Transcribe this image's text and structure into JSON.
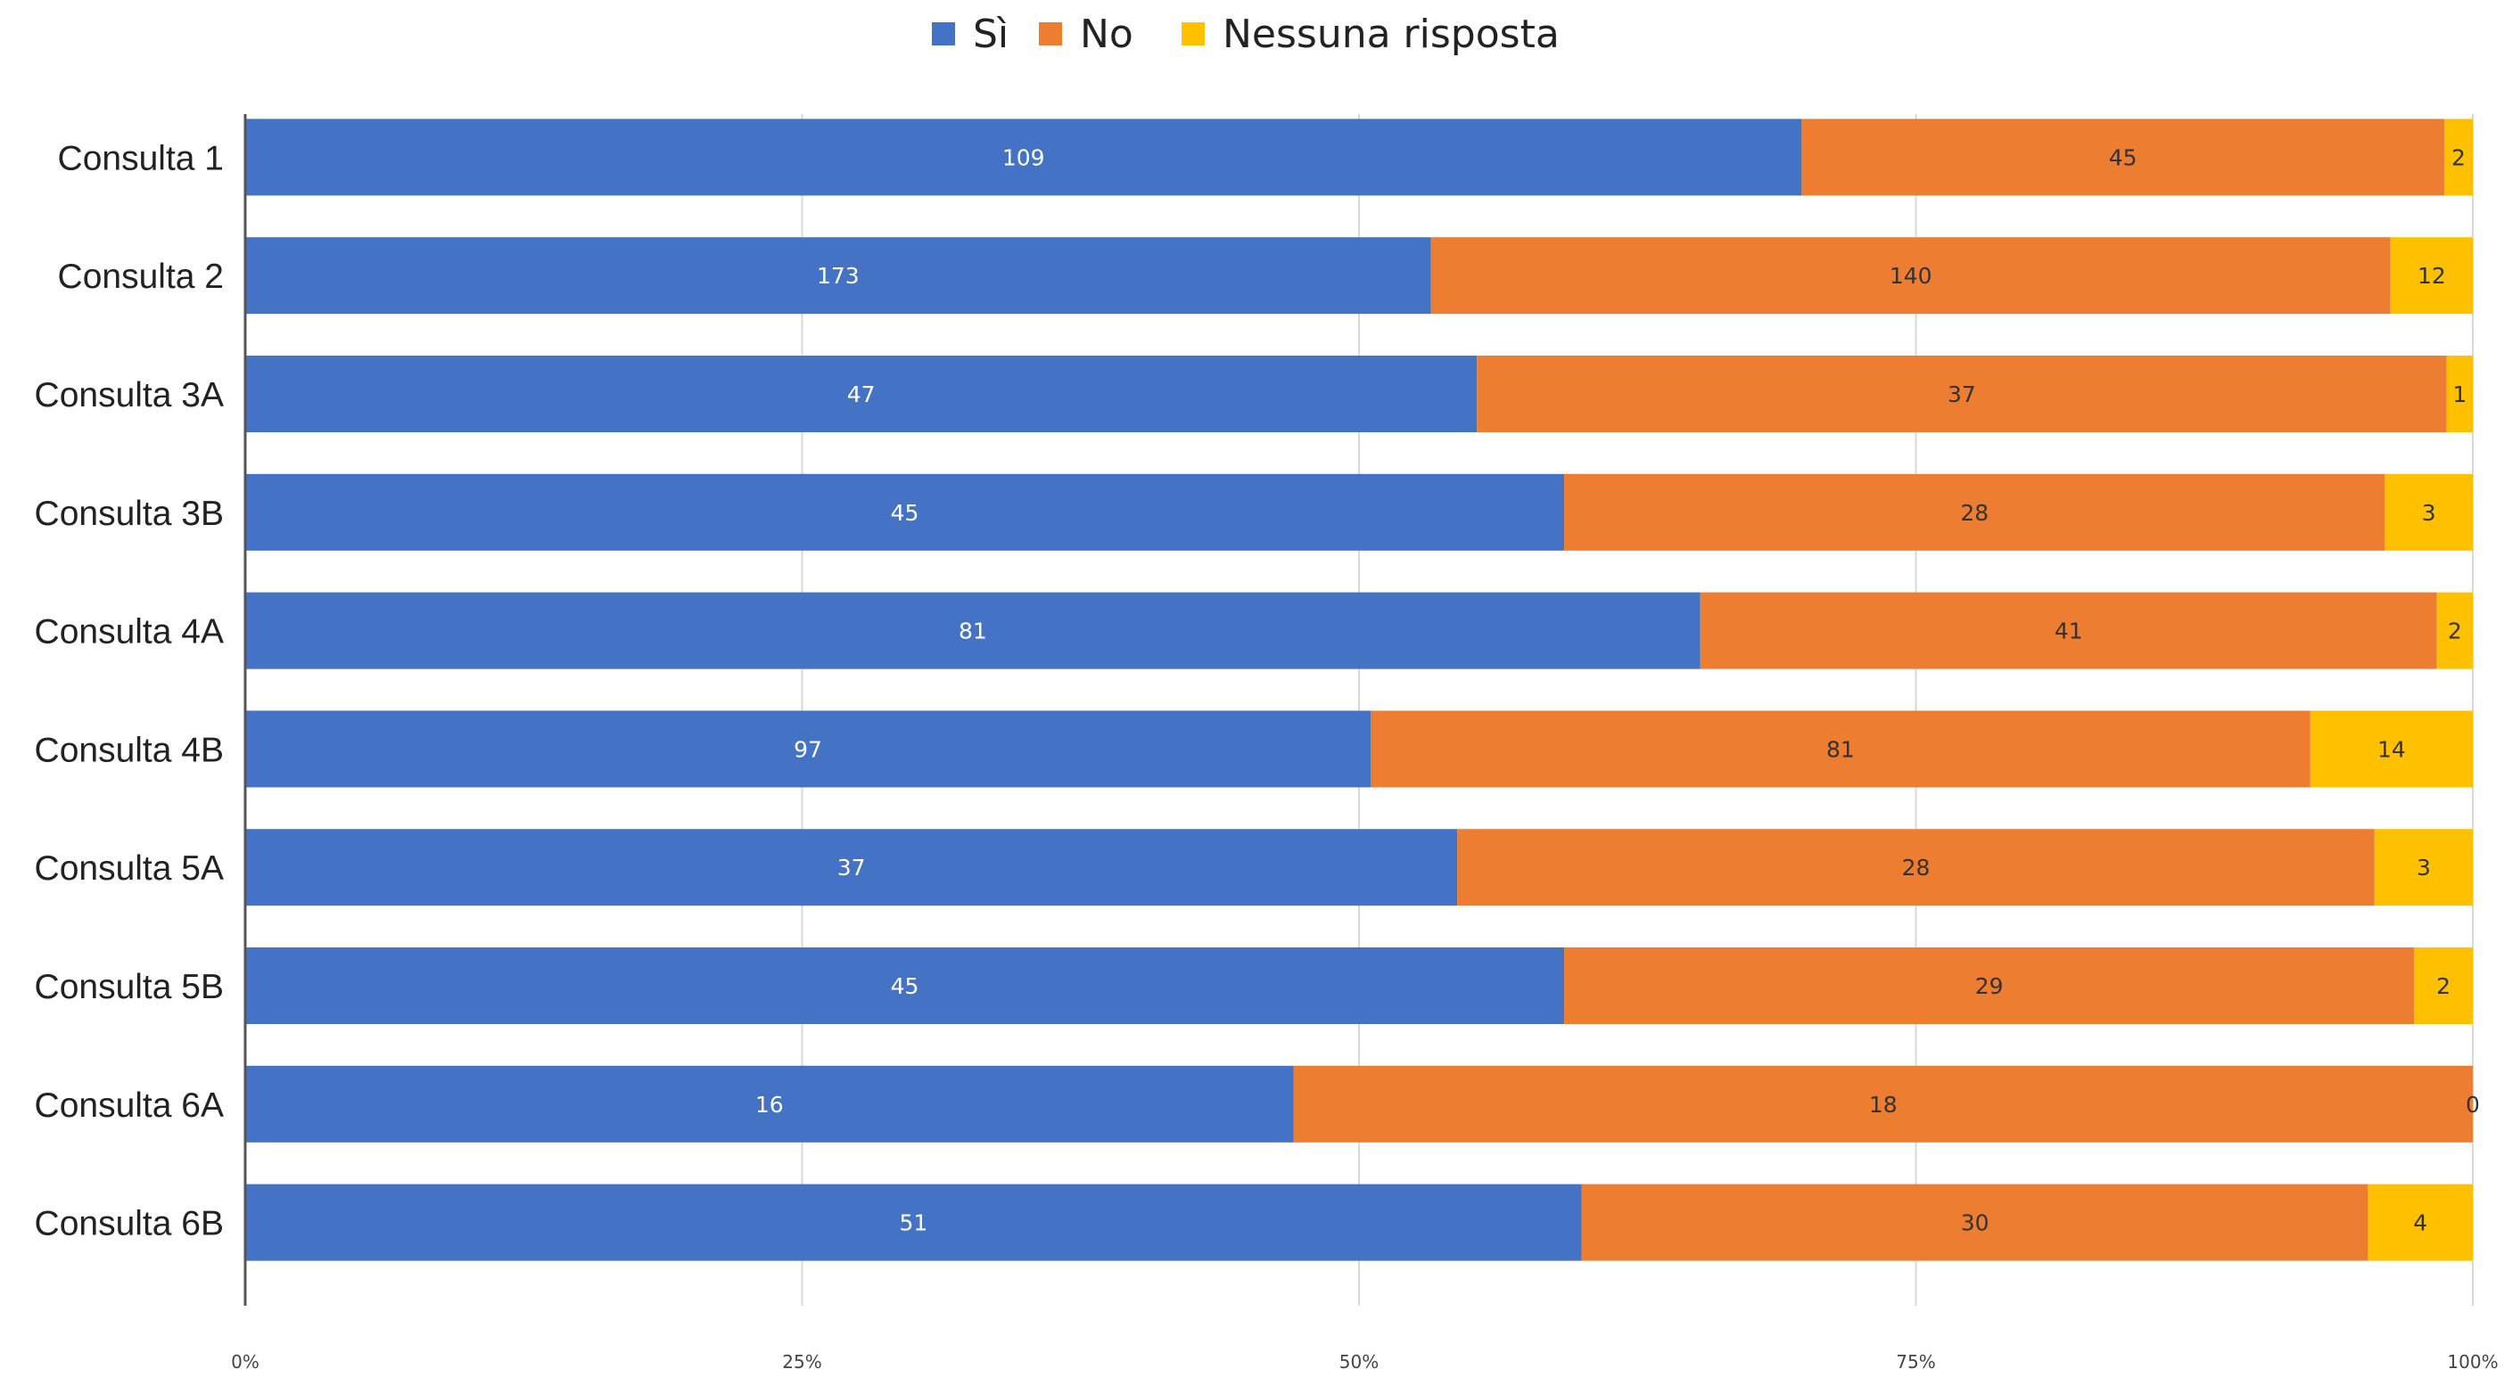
{
  "chart_data": {
    "type": "bar",
    "orientation": "horizontal",
    "stacked": "percent",
    "categories": [
      "Consulta 1",
      "Consulta 2",
      "Consulta 3A",
      "Consulta 3B",
      "Consulta 4A",
      "Consulta 4B",
      "Consulta 5A",
      "Consulta  5B",
      "Consulta  6A",
      "Consulta  6B"
    ],
    "series": [
      {
        "name": "Sì",
        "color": "#4472C4",
        "label_color": "#FFFFFF",
        "values": [
          109,
          173,
          47,
          45,
          81,
          97,
          37,
          45,
          16,
          51
        ]
      },
      {
        "name": "No",
        "color": "#ED7D31",
        "label_color": "#333333",
        "values": [
          45,
          140,
          37,
          28,
          41,
          81,
          28,
          29,
          18,
          30
        ]
      },
      {
        "name": "Nessuna risposta",
        "color": "#FFC000",
        "label_color": "#333333",
        "values": [
          2,
          12,
          1,
          3,
          2,
          14,
          3,
          2,
          0,
          4
        ]
      }
    ],
    "xticks": [
      "0%",
      "25%",
      "50%",
      "75%",
      "100%"
    ],
    "xlim": [
      0,
      100
    ],
    "grid": true,
    "legend_position": "top-center",
    "title": "",
    "xlabel": "",
    "ylabel": ""
  }
}
